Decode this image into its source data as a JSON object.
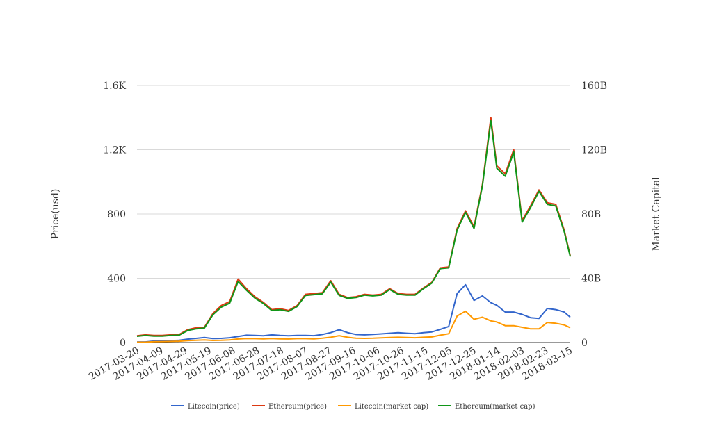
{
  "chart_data": {
    "type": "line",
    "title": "",
    "xlabel": "",
    "ylabel": "Price(usd)",
    "y2label": "Market Capital",
    "ylim": [
      0,
      1600
    ],
    "y2lim": [
      0,
      160
    ],
    "y_ticks": [
      "0",
      "400",
      "800",
      "1.2K",
      "1.6K"
    ],
    "y2_ticks": [
      "0",
      "40B",
      "80B",
      "120B",
      "160B"
    ],
    "x_ticks": [
      "2017-03-20",
      "2017-04-09",
      "2017-04-29",
      "2017-05-19",
      "2017-06-08",
      "2017-06-28",
      "2017-07-18",
      "2017-08-07",
      "2017-08-27",
      "2017-09-16",
      "2017-10-06",
      "2017-10-26",
      "2017-11-15",
      "2017-12-05",
      "2017-12-25",
      "2018-01-14",
      "2018-02-03",
      "2018-02-23",
      "2018-03-15"
    ],
    "grid": true,
    "legend_position": "bottom",
    "x": [
      "2017-03-20",
      "2017-03-27",
      "2017-04-03",
      "2017-04-10",
      "2017-04-17",
      "2017-04-24",
      "2017-05-01",
      "2017-05-08",
      "2017-05-15",
      "2017-05-22",
      "2017-05-29",
      "2017-06-05",
      "2017-06-12",
      "2017-06-19",
      "2017-06-26",
      "2017-07-03",
      "2017-07-10",
      "2017-07-17",
      "2017-07-24",
      "2017-07-31",
      "2017-08-07",
      "2017-08-14",
      "2017-08-21",
      "2017-08-28",
      "2017-09-04",
      "2017-09-11",
      "2017-09-18",
      "2017-09-25",
      "2017-10-02",
      "2017-10-09",
      "2017-10-16",
      "2017-10-23",
      "2017-10-30",
      "2017-11-06",
      "2017-11-13",
      "2017-11-20",
      "2017-11-27",
      "2017-12-04",
      "2017-12-11",
      "2017-12-18",
      "2017-12-25",
      "2018-01-01",
      "2018-01-08",
      "2018-01-13",
      "2018-01-20",
      "2018-01-27",
      "2018-02-03",
      "2018-02-10",
      "2018-02-17",
      "2018-02-24",
      "2018-03-03",
      "2018-03-10",
      "2018-03-15"
    ],
    "series": [
      {
        "name": "Litecoin(price)",
        "axis": "left",
        "color": "#3366cc",
        "values": [
          4,
          4,
          9,
          10,
          12,
          14,
          21,
          26,
          31,
          25,
          26,
          30,
          38,
          46,
          44,
          42,
          48,
          44,
          42,
          44,
          44,
          43,
          50,
          62,
          80,
          62,
          50,
          48,
          51,
          54,
          58,
          62,
          58,
          55,
          62,
          66,
          82,
          100,
          305,
          360,
          262,
          290,
          248,
          232,
          190,
          190,
          175,
          155,
          150,
          212,
          205,
          190,
          158
        ]
      },
      {
        "name": "Ethereum(price)",
        "axis": "left",
        "color": "#dc3912",
        "values": [
          42,
          48,
          44,
          44,
          48,
          50,
          80,
          92,
          95,
          180,
          230,
          255,
          395,
          335,
          285,
          250,
          205,
          210,
          200,
          230,
          300,
          305,
          310,
          385,
          300,
          280,
          285,
          300,
          295,
          300,
          335,
          305,
          300,
          300,
          340,
          375,
          465,
          470,
          710,
          820,
          720,
          985,
          1400,
          1100,
          1050,
          1200,
          760,
          850,
          950,
          870,
          860,
          700,
          540
        ]
      },
      {
        "name": "Litecoin(market cap)",
        "axis": "right",
        "color": "#ff9900",
        "values": [
          0.2,
          0.2,
          0.5,
          0.6,
          0.7,
          0.8,
          1.2,
          1.4,
          1.6,
          1.3,
          1.4,
          1.6,
          2.2,
          2.5,
          2.4,
          2.3,
          2.5,
          2.3,
          2.2,
          2.4,
          2.4,
          2.3,
          2.7,
          3.3,
          4.3,
          3.3,
          2.7,
          2.6,
          2.7,
          2.9,
          3.1,
          3.3,
          3.1,
          3.0,
          3.3,
          3.5,
          4.6,
          5.5,
          16.5,
          19.5,
          14.5,
          15.8,
          13.5,
          12.8,
          10.5,
          10.5,
          9.5,
          8.5,
          8.5,
          12.5,
          12.0,
          11.0,
          9.2
        ]
      },
      {
        "name": "Ethereum(market cap)",
        "axis": "right",
        "color": "#109618",
        "values": [
          3.9,
          4.4,
          4.0,
          4.0,
          4.4,
          4.6,
          7.5,
          8.5,
          9.0,
          17.2,
          22.0,
          24.5,
          38.0,
          32.5,
          27.6,
          24.3,
          19.9,
          20.4,
          19.4,
          22.4,
          29.3,
          29.8,
          30.3,
          37.6,
          29.3,
          27.5,
          28.0,
          29.5,
          29.0,
          29.5,
          33.0,
          30.0,
          29.5,
          29.5,
          33.5,
          37.0,
          46.0,
          46.5,
          70.0,
          81.0,
          71.0,
          97.5,
          138.0,
          108.5,
          103.5,
          118.5,
          75.0,
          84.0,
          94.0,
          86.0,
          85.0,
          69.0,
          53.5
        ]
      }
    ]
  }
}
